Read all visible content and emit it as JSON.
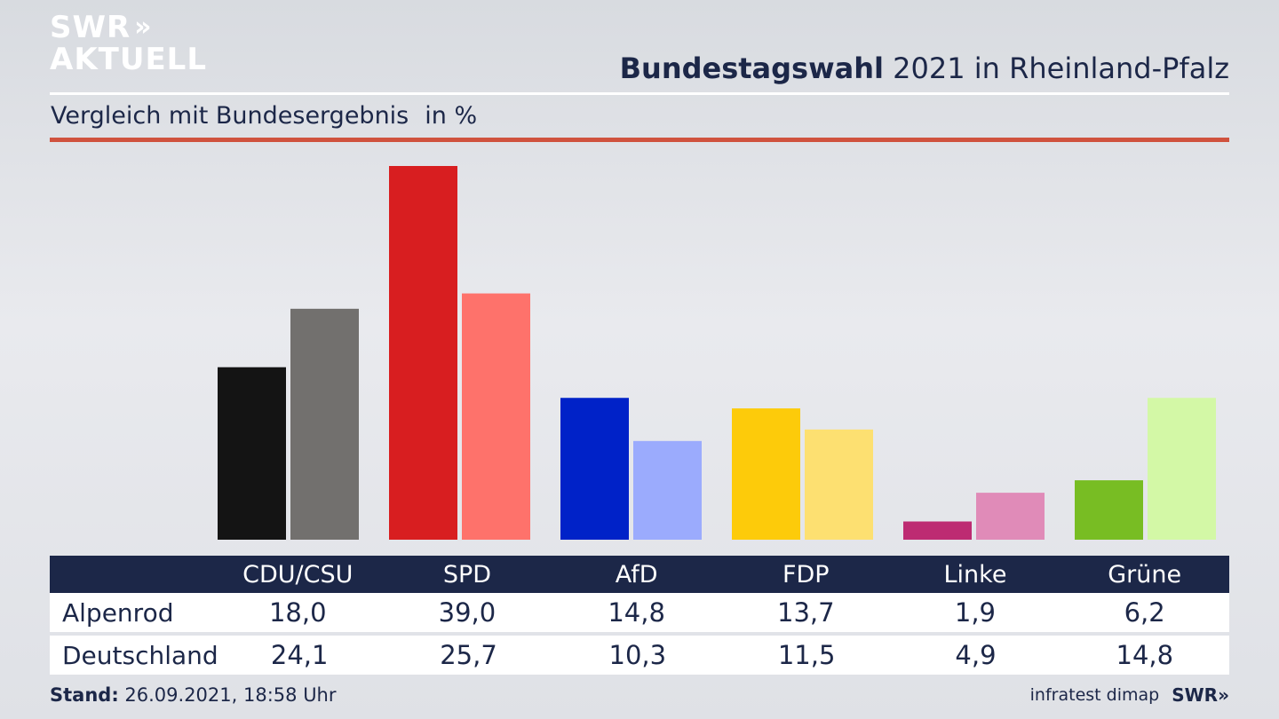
{
  "logo": {
    "line1": "SWR",
    "chevrons": "»",
    "line2": "AKTUELL"
  },
  "title": {
    "bold": "Bundestagswahl",
    "rest": "2021 in Rheinland-Pfalz"
  },
  "subtitle": {
    "text": "Vergleich mit Bundesergebnis",
    "unit": "in %"
  },
  "table": {
    "rows": [
      {
        "label": "Alpenrod",
        "values": [
          "18,0",
          "39,0",
          "14,8",
          "13,7",
          "1,9",
          "6,2"
        ]
      },
      {
        "label": "Deutschland",
        "values": [
          "24,1",
          "25,7",
          "10,3",
          "11,5",
          "4,9",
          "14,8"
        ]
      }
    ]
  },
  "footer": {
    "stand_label": "Stand:",
    "stand_value": "26.09.2021, 18:58 Uhr",
    "source": "infratest dimap",
    "brand": "SWR»"
  },
  "chart_data": {
    "type": "bar",
    "categories": [
      "CDU/CSU",
      "SPD",
      "AfD",
      "FDP",
      "Linke",
      "Grüne"
    ],
    "series": [
      {
        "name": "Alpenrod",
        "values": [
          18.0,
          39.0,
          14.8,
          13.7,
          1.9,
          6.2
        ],
        "colors": [
          "#141414",
          "#d81e20",
          "#0022c8",
          "#fdcb0a",
          "#bd2b72",
          "#78bd23"
        ]
      },
      {
        "name": "Deutschland",
        "values": [
          24.1,
          25.7,
          10.3,
          11.5,
          4.9,
          14.8
        ],
        "colors": [
          "#72706e",
          "#fe726b",
          "#9babfd",
          "#fde071",
          "#e08bb8",
          "#d3f8a6"
        ]
      }
    ],
    "ylim": [
      0,
      39.0
    ],
    "grid": false,
    "legend": "table below chart"
  }
}
